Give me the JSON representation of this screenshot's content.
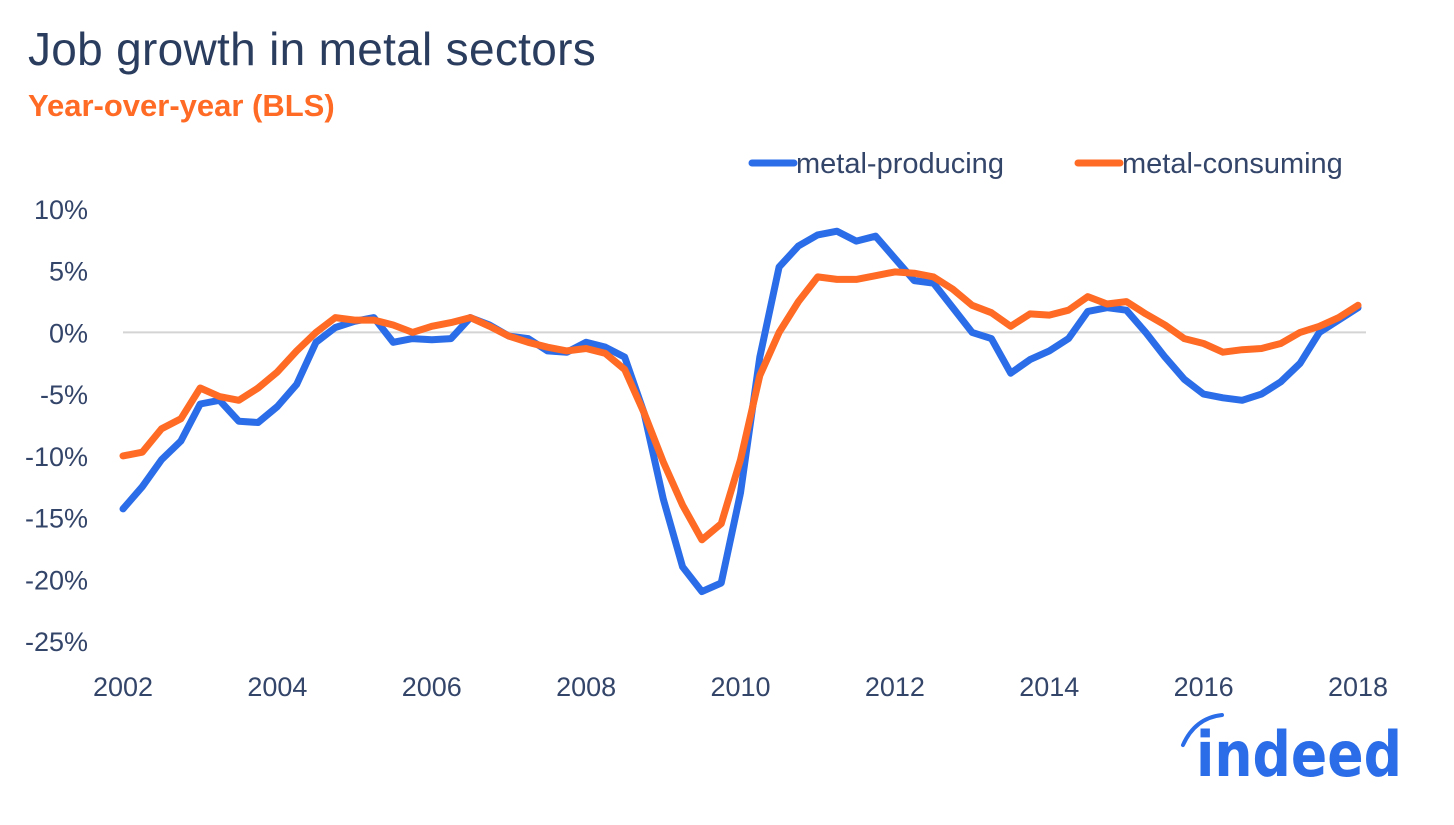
{
  "chart_data": {
    "type": "line",
    "title": "Job growth in metal sectors",
    "subtitle": "Year-over-year (BLS)",
    "xlabel": "",
    "ylabel": "",
    "xlim": [
      2002,
      2018
    ],
    "ylim": [
      -25,
      10
    ],
    "x_ticks": [
      "2002",
      "2004",
      "2006",
      "2008",
      "2010",
      "2012",
      "2014",
      "2016",
      "2018"
    ],
    "y_ticks": [
      "10%",
      "5%",
      "0%",
      "-5%",
      "-10%",
      "-15%",
      "-20%",
      "-25%"
    ],
    "grid": "zero line only",
    "legend_placement": "top-right",
    "x": [
      2002,
      2002.25,
      2002.5,
      2002.75,
      2003,
      2003.25,
      2003.5,
      2003.75,
      2004,
      2004.25,
      2004.5,
      2004.75,
      2005,
      2005.25,
      2005.5,
      2005.75,
      2006,
      2006.25,
      2006.5,
      2006.75,
      2007,
      2007.25,
      2007.5,
      2007.75,
      2008,
      2008.25,
      2008.5,
      2008.75,
      2009,
      2009.25,
      2009.5,
      2009.75,
      2010,
      2010.25,
      2010.5,
      2010.75,
      2011,
      2011.25,
      2011.5,
      2011.75,
      2012,
      2012.25,
      2012.5,
      2012.75,
      2013,
      2013.25,
      2013.5,
      2013.75,
      2014,
      2014.25,
      2014.5,
      2014.75,
      2015,
      2015.25,
      2015.5,
      2015.75,
      2016,
      2016.25,
      2016.5,
      2016.75,
      2017,
      2017.25,
      2017.5,
      2017.75,
      2018
    ],
    "series": [
      {
        "name": "metal-producing",
        "color": "#2b6de8",
        "values": [
          -14.3,
          -12.5,
          -10.3,
          -8.8,
          -5.8,
          -5.5,
          -7.2,
          -7.3,
          -6.0,
          -4.2,
          -0.8,
          0.4,
          0.9,
          1.2,
          -0.8,
          -0.5,
          -0.6,
          -0.5,
          1.2,
          0.6,
          -0.3,
          -0.5,
          -1.5,
          -1.6,
          -0.8,
          -1.2,
          -2.0,
          -6.5,
          -13.5,
          -19.0,
          -21.0,
          -20.3,
          -13.0,
          -2.0,
          5.3,
          7.0,
          7.9,
          8.2,
          7.4,
          7.8,
          6.0,
          4.2,
          4.0,
          2.0,
          0.0,
          -0.5,
          -3.3,
          -2.2,
          -1.5,
          -0.5,
          1.7,
          2.0,
          1.8,
          0.0,
          -2.0,
          -3.8,
          -5.0,
          -5.3,
          -5.5,
          -5.0,
          -4.0,
          -2.5,
          0.0,
          1.0,
          2.0
        ]
      },
      {
        "name": "metal-consuming",
        "color": "#ff6a24",
        "values": [
          -10.0,
          -9.7,
          -7.8,
          -7.0,
          -4.5,
          -5.2,
          -5.5,
          -4.5,
          -3.2,
          -1.5,
          0.0,
          1.2,
          1.0,
          1.0,
          0.6,
          0.0,
          0.5,
          0.8,
          1.2,
          0.5,
          -0.3,
          -0.8,
          -1.2,
          -1.5,
          -1.3,
          -1.7,
          -3.0,
          -6.5,
          -10.5,
          -14.0,
          -16.8,
          -15.5,
          -10.3,
          -3.5,
          0.0,
          2.5,
          4.5,
          4.3,
          4.3,
          4.6,
          4.9,
          4.8,
          4.5,
          3.5,
          2.2,
          1.6,
          0.5,
          1.5,
          1.4,
          1.8,
          2.9,
          2.3,
          2.5,
          1.5,
          0.6,
          -0.5,
          -0.9,
          -1.6,
          -1.4,
          -1.3,
          -0.9,
          0.0,
          0.5,
          1.2,
          2.2
        ]
      }
    ]
  },
  "logo": {
    "text": "indeed",
    "color": "#2b6de8"
  }
}
